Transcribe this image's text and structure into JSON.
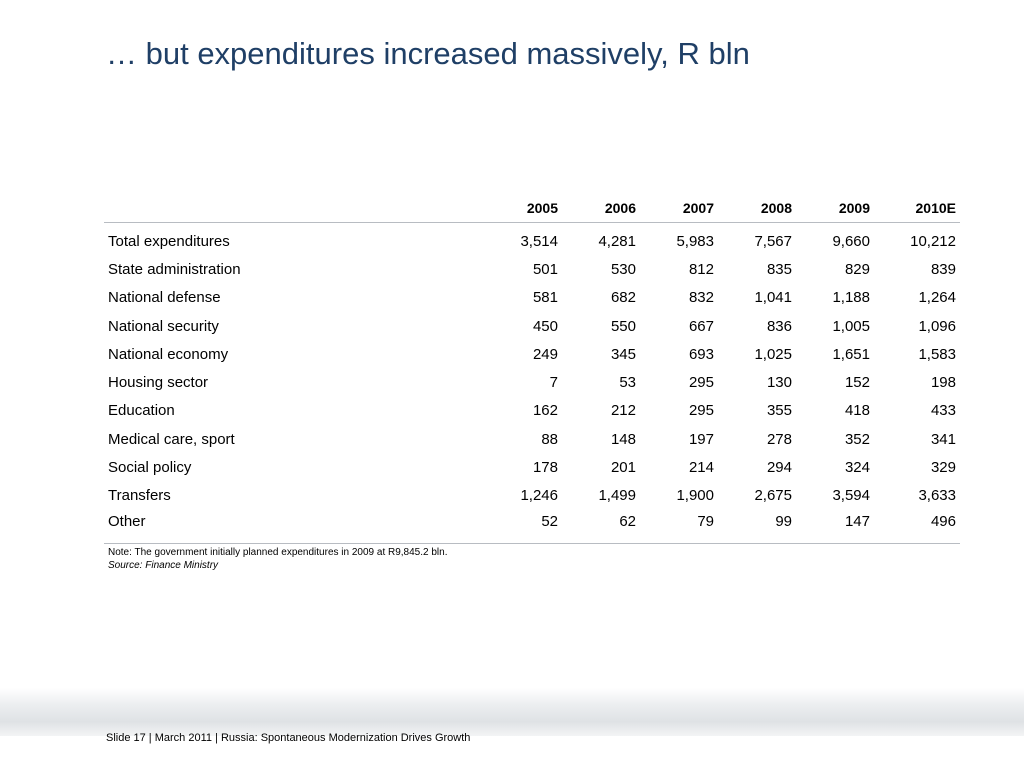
{
  "title": "… but expenditures increased massively, R bln",
  "table": {
    "columns": [
      "2005",
      "2006",
      "2007",
      "2008",
      "2009",
      "2010E"
    ],
    "rows": [
      {
        "label": "Total expenditures",
        "values": [
          "3,514",
          "4,281",
          "5,983",
          "7,567",
          "9,660",
          "10,212"
        ]
      },
      {
        "label": "State administration",
        "values": [
          "501",
          "530",
          "812",
          "835",
          "829",
          "839"
        ]
      },
      {
        "label": "National defense",
        "values": [
          "581",
          "682",
          "832",
          "1,041",
          "1,188",
          "1,264"
        ]
      },
      {
        "label": "National security",
        "values": [
          "450",
          "550",
          "667",
          "836",
          "1,005",
          "1,096"
        ]
      },
      {
        "label": "National economy",
        "values": [
          "249",
          "345",
          "693",
          "1,025",
          "1,651",
          "1,583"
        ]
      },
      {
        "label": "Housing sector",
        "values": [
          "7",
          "53",
          "295",
          "130",
          "152",
          "198"
        ]
      },
      {
        "label": "Education",
        "values": [
          "162",
          "212",
          "295",
          "355",
          "418",
          "433"
        ]
      },
      {
        "label": "Medical care, sport",
        "values": [
          "88",
          "148",
          "197",
          "278",
          "352",
          "341"
        ]
      },
      {
        "label": "Social policy",
        "values": [
          "178",
          "201",
          "214",
          "294",
          "324",
          "329"
        ]
      },
      {
        "label": "Transfers",
        "values": [
          "1,246",
          "1,499",
          "1,900",
          "2,675",
          "3,594",
          "3,633"
        ]
      },
      {
        "label": "Other",
        "values": [
          "52",
          "62",
          "79",
          "99",
          "147",
          "496"
        ]
      }
    ]
  },
  "note": "Note: The government initially planned expenditures in 2009 at R9,845.2 bln.",
  "source": "Source: Finance Ministry",
  "footer": "Slide 17  | March 2011 | Russia: Spontaneous Modernization Drives Growth"
}
